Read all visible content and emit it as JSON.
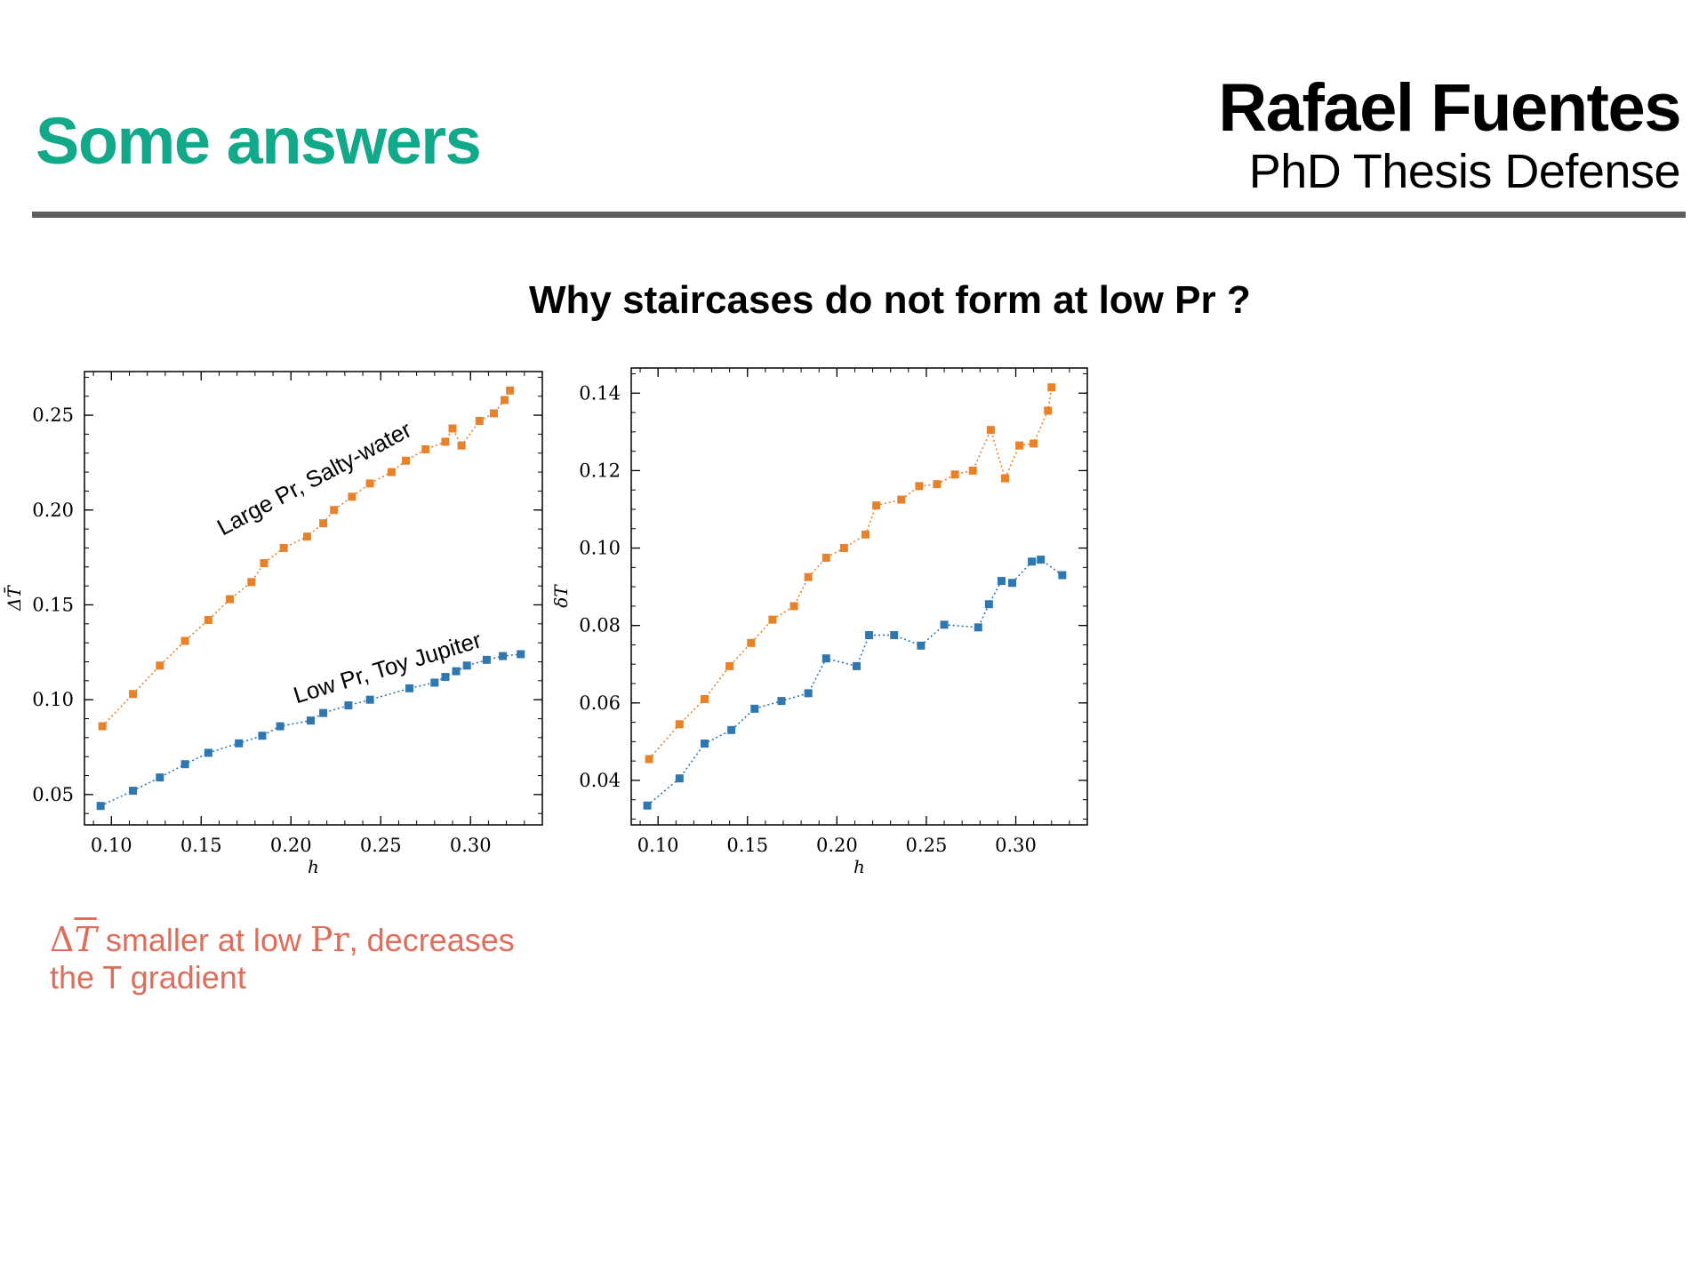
{
  "header": {
    "title": "Some answers",
    "author": "Rafael Fuentes",
    "subtitle": "PhD Thesis Defense"
  },
  "question": "Why staircases do not form at low Pr ?",
  "note": {
    "symbol": "Δ",
    "symbol_var": "T",
    "line1_text": "smaller at low",
    "line1_pr": "Pr",
    "line1_end": ", decreases",
    "line2": "the T gradient"
  },
  "colors": {
    "orange": "#e8822a",
    "blue": "#2f77b1",
    "title_green": "#12a88a",
    "note_red": "#e06c5a"
  },
  "chart_data": [
    {
      "type": "line",
      "xlabel": "h",
      "ylabel": "ΔT̄",
      "xlim": [
        0.085,
        0.34
      ],
      "ylim": [
        0.034,
        0.273
      ],
      "xticks": [
        "0.10",
        "0.15",
        "0.20",
        "0.25",
        "0.30"
      ],
      "yticks": [
        "0.05",
        "0.10",
        "0.15",
        "0.20",
        "0.25"
      ],
      "grid": false,
      "annotations": [
        {
          "text": "Large Pr, Salty-water",
          "x": 0.215,
          "y": 0.213,
          "angle": -28
        },
        {
          "text": "Low Pr, Toy Jupiter",
          "x": 0.255,
          "y": 0.113,
          "angle": -17
        }
      ],
      "series": [
        {
          "color": "#e8822a",
          "x": [
            0.095,
            0.112,
            0.127,
            0.141,
            0.154,
            0.166,
            0.178,
            0.185,
            0.196,
            0.209,
            0.218,
            0.224,
            0.234,
            0.244,
            0.256,
            0.264,
            0.275,
            0.286,
            0.29,
            0.295,
            0.305,
            0.313,
            0.319,
            0.322
          ],
          "y": [
            0.086,
            0.103,
            0.118,
            0.131,
            0.142,
            0.153,
            0.162,
            0.172,
            0.18,
            0.186,
            0.193,
            0.2,
            0.207,
            0.214,
            0.22,
            0.226,
            0.232,
            0.236,
            0.243,
            0.234,
            0.247,
            0.251,
            0.258,
            0.263
          ]
        },
        {
          "color": "#2f77b1",
          "x": [
            0.094,
            0.112,
            0.127,
            0.141,
            0.154,
            0.171,
            0.184,
            0.194,
            0.211,
            0.218,
            0.232,
            0.244,
            0.266,
            0.28,
            0.286,
            0.292,
            0.298,
            0.309,
            0.318,
            0.328
          ],
          "y": [
            0.044,
            0.052,
            0.059,
            0.066,
            0.072,
            0.077,
            0.081,
            0.086,
            0.089,
            0.093,
            0.097,
            0.1,
            0.106,
            0.109,
            0.112,
            0.115,
            0.118,
            0.121,
            0.123,
            0.124
          ]
        }
      ]
    },
    {
      "type": "line",
      "xlabel": "h",
      "ylabel": "δT",
      "xlim": [
        0.085,
        0.34
      ],
      "ylim": [
        0.0285,
        0.1465
      ],
      "xticks": [
        "0.10",
        "0.15",
        "0.20",
        "0.25",
        "0.30"
      ],
      "yticks": [
        "0.04",
        "0.06",
        "0.08",
        "0.10",
        "0.12",
        "0.14"
      ],
      "grid": false,
      "series": [
        {
          "color": "#e8822a",
          "x": [
            0.095,
            0.112,
            0.126,
            0.14,
            0.152,
            0.164,
            0.176,
            0.184,
            0.194,
            0.204,
            0.216,
            0.222,
            0.236,
            0.246,
            0.256,
            0.266,
            0.276,
            0.286,
            0.294,
            0.302,
            0.31,
            0.318,
            0.32
          ],
          "y": [
            0.0455,
            0.0545,
            0.061,
            0.0695,
            0.0755,
            0.0815,
            0.085,
            0.0925,
            0.0975,
            0.1,
            0.1035,
            0.111,
            0.1125,
            0.116,
            0.1165,
            0.119,
            0.12,
            0.1305,
            0.118,
            0.1265,
            0.127,
            0.1355,
            0.1415
          ]
        },
        {
          "color": "#2f77b1",
          "x": [
            0.094,
            0.112,
            0.126,
            0.141,
            0.154,
            0.169,
            0.184,
            0.194,
            0.211,
            0.218,
            0.232,
            0.247,
            0.26,
            0.279,
            0.285,
            0.292,
            0.298,
            0.309,
            0.314,
            0.326
          ],
          "y": [
            0.0335,
            0.0405,
            0.0495,
            0.053,
            0.0585,
            0.0605,
            0.0625,
            0.0715,
            0.0695,
            0.0775,
            0.0775,
            0.0748,
            0.0802,
            0.0795,
            0.0855,
            0.0915,
            0.091,
            0.0965,
            0.097,
            0.093
          ]
        }
      ]
    }
  ]
}
